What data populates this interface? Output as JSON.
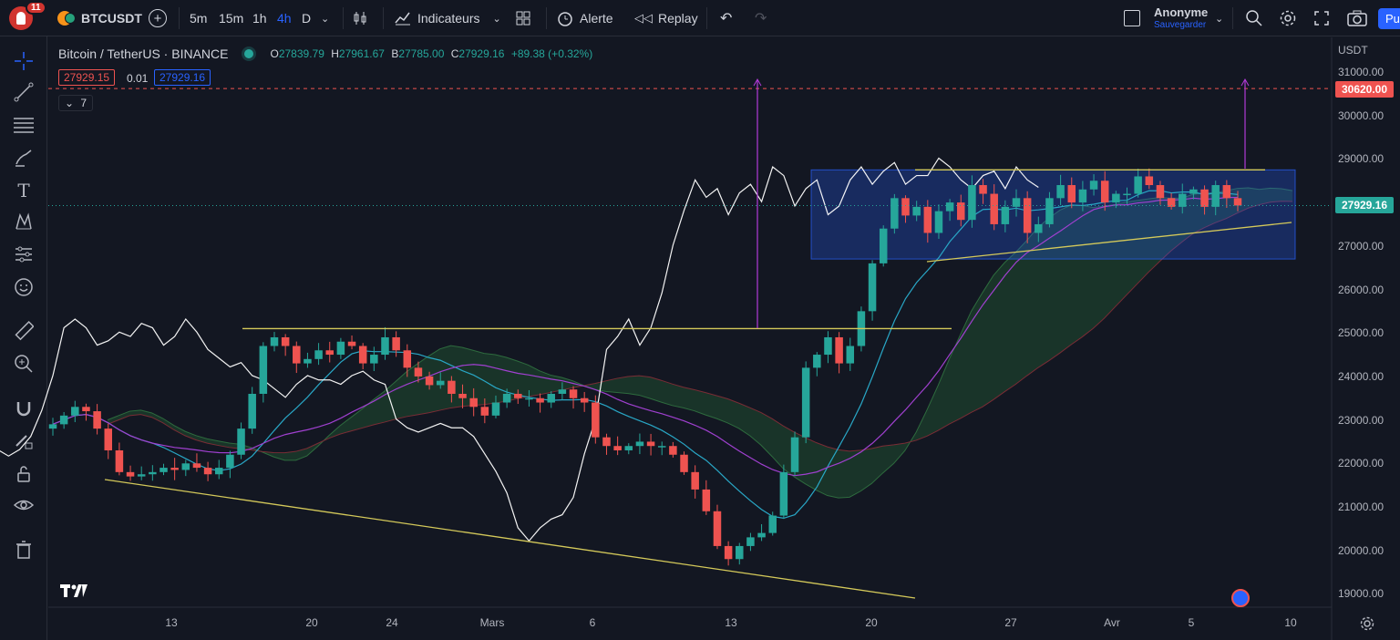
{
  "topbar": {
    "notif_count": "11",
    "symbol": "BTCUSDT",
    "intervals": [
      "5m",
      "15m",
      "1h",
      "4h",
      "D"
    ],
    "active_interval": "4h",
    "indicators_label": "Indicateurs",
    "alert_label": "Alerte",
    "replay_label": "Replay",
    "user_name": "Anonyme",
    "user_sub": "Sauvegarder",
    "publish_label": "Pu"
  },
  "legend": {
    "pair": "Bitcoin / TetherUS · BINANCE",
    "o_label": "O",
    "o_value": "27839.79",
    "h_label": "H",
    "h_value": "27961.67",
    "l_label": "B",
    "l_value": "27785.00",
    "c_label": "C",
    "c_value": "27929.16",
    "change": "+89.38 (+0.32%)",
    "bid": "27929.15",
    "spread": "0.01",
    "ask": "27929.16",
    "indicators_count": "7"
  },
  "chart_data": {
    "type": "candlestick",
    "currency": "USDT",
    "y_ticks": [
      31000,
      30000,
      29000,
      28000,
      27000,
      26000,
      25000,
      24000,
      23000,
      22000,
      21000,
      20000,
      19000
    ],
    "ylim": [
      18700,
      31500
    ],
    "x_ticks": [
      "13",
      "20",
      "24",
      "Mars",
      "6",
      "13",
      "20",
      "27",
      "Avr",
      "5",
      "10"
    ],
    "last_price": 27929.16,
    "target_price": 30620.0,
    "closes": [
      22900,
      23100,
      23300,
      23200,
      22800,
      22300,
      21800,
      21700,
      21750,
      21800,
      21900,
      21850,
      22000,
      21900,
      21750,
      21900,
      22200,
      22800,
      23600,
      24700,
      24900,
      24700,
      24300,
      24400,
      24600,
      24500,
      24800,
      24700,
      24300,
      24500,
      24900,
      24600,
      24200,
      24000,
      23800,
      23900,
      23600,
      23500,
      23300,
      23100,
      23400,
      23600,
      23500,
      23500,
      23400,
      23600,
      23700,
      23500,
      23400,
      22600,
      22400,
      22300,
      22400,
      22500,
      22400,
      22400,
      22200,
      21800,
      21400,
      20900,
      20100,
      19800,
      20100,
      20300,
      20400,
      20800,
      21800,
      22600,
      24200,
      24500,
      24900,
      24300,
      24700,
      25500,
      26600,
      27400,
      28100,
      27700,
      27900,
      27300,
      27800,
      28000,
      27600,
      28400,
      28200,
      27500,
      27900,
      28100,
      27300,
      27500,
      28100,
      28400,
      28000,
      28300,
      28500,
      28000,
      28200,
      28200,
      28600,
      28400,
      28100,
      27900,
      28200,
      28300,
      27900,
      28400,
      28100,
      27930
    ],
    "annotations": {
      "upper_trendline": "25100",
      "support_trendline": "descending",
      "range_box": [
        26700,
        28750
      ]
    }
  },
  "colors": {
    "bg": "#131722",
    "up": "#26a69a",
    "down": "#ef5350",
    "trendline": "#d4c95a",
    "chikou": "#ffffff",
    "kijun": "#a040d0",
    "tenkan": "#29a7c6",
    "box": "#2962ff",
    "cloud_bull": "#1f4d2f",
    "cloud_bear": "#5a1f26"
  }
}
